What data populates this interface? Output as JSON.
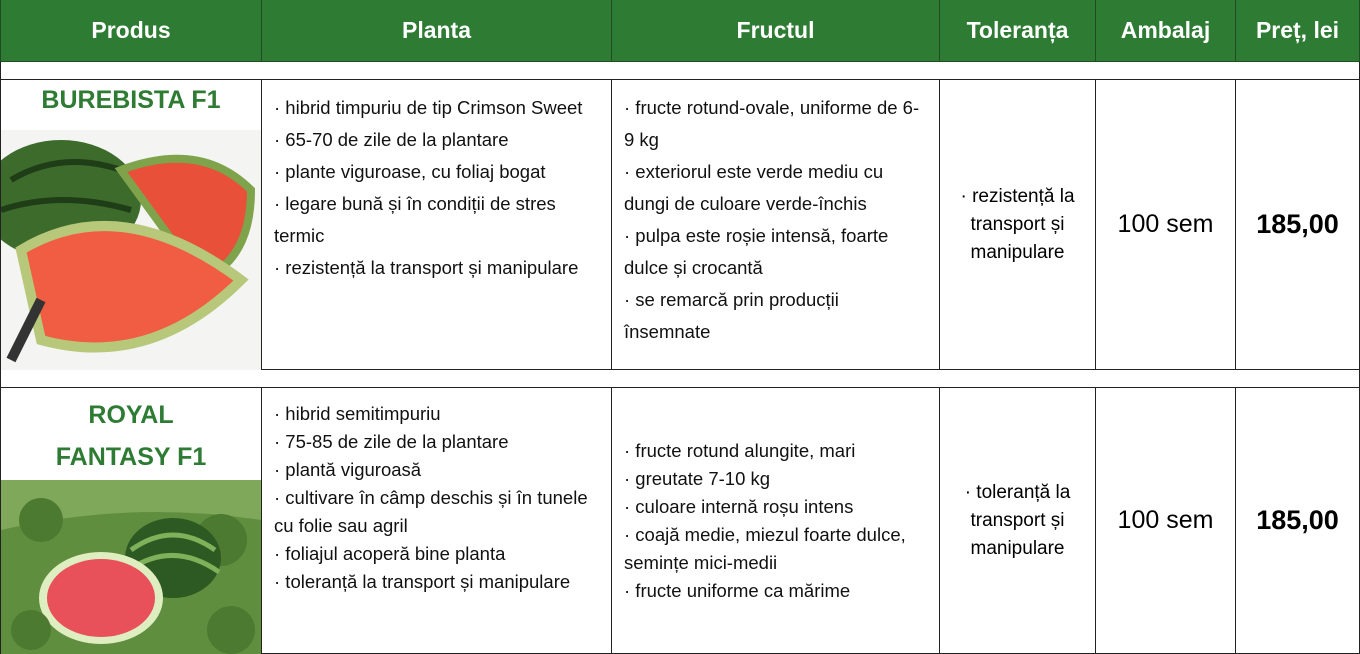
{
  "header": {
    "columns": [
      "Produs",
      "Planta",
      "Fructul",
      "Toleranța",
      "Ambalaj",
      "Preț, lei"
    ]
  },
  "rows": [
    {
      "name": "BUREBISTA F1",
      "planta": [
        "· hibrid timpuriu de tip Crimson Sweet",
        "· 65-70 de zile de la plantare",
        "· plante viguroase, cu foliaj bogat",
        "· legare bună și în condiții de stres termic",
        "· rezistență la transport și manipulare"
      ],
      "fructul": [
        "· fructe rotund-ovale, uniforme de 6-9 kg",
        "· exteriorul este verde mediu cu dungi de culoare verde-închis",
        "· pulpa este roșie intensă, foarte dulce și crocantă",
        "· se remarcă prin producții însemnate"
      ],
      "toleranta": [
        "· rezistență la transport și manipulare"
      ],
      "ambalaj": "100 sem",
      "pret": "185,00"
    },
    {
      "name": "ROYAL FANTASY F1",
      "planta": [
        "· hibrid semitimpuriu",
        "· 75-85 de zile de la plantare",
        "· plantă viguroasă",
        "· cultivare în câmp deschis și în tunele cu folie sau agril",
        "· foliajul acoperă bine planta",
        "· toleranță la transport și manipulare"
      ],
      "fructul": [
        "· fructe rotund alungite, mari",
        "· greutate 7-10 kg",
        "· culoare internă roșu intens",
        "· coajă medie, miezul foarte dulce, semințe mici-medii",
        "· fructe uniforme ca mărime"
      ],
      "toleranta": [
        "· toleranță la transport și manipulare"
      ],
      "ambalaj": "100 sem",
      "pret": "185,00"
    }
  ]
}
